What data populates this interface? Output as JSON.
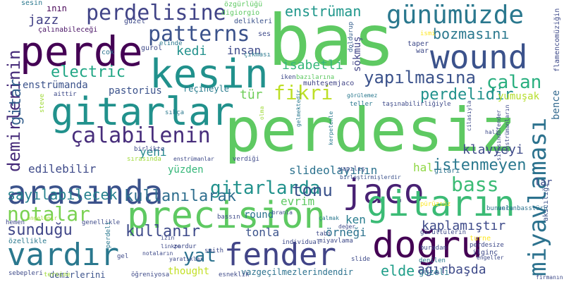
{
  "words": [
    {
      "text": "perdesiz",
      "color": "#5ec962"
    },
    {
      "text": "bas",
      "color": "#5ec962"
    },
    {
      "text": "perde",
      "color": "#440154"
    },
    {
      "text": "gitarlar",
      "color": "#21918c"
    },
    {
      "text": "kesin",
      "color": "#21918c"
    },
    {
      "text": "wound",
      "color": "#3b528b"
    },
    {
      "text": "arasında",
      "color": "#3b528b"
    },
    {
      "text": "precision",
      "color": "#5ec962"
    },
    {
      "text": "jaco",
      "color": "#482173"
    },
    {
      "text": "gitarın",
      "color": "#3bbb75"
    },
    {
      "text": "doğru",
      "color": "#440154"
    },
    {
      "text": "fender",
      "color": "#414487"
    },
    {
      "text": "vardır",
      "color": "#2a788e"
    },
    {
      "text": "günümüzde",
      "color": "#2a788e"
    },
    {
      "text": "miyavlaması",
      "color": "#2c728e"
    },
    {
      "text": "patterns",
      "color": "#3b528b"
    },
    {
      "text": "perdelisine",
      "color": "#414487"
    },
    {
      "text": "çalabilenin",
      "color": "#472d7b"
    },
    {
      "text": "electric",
      "color": "#21a685"
    },
    {
      "text": "fikri",
      "color": "#bddf26"
    },
    {
      "text": "yapılmasına",
      "color": "#3b528b"
    },
    {
      "text": "çalan",
      "color": "#29af7f"
    },
    {
      "text": "gitarlarda",
      "color": "#21918c"
    },
    {
      "text": "bass",
      "color": "#3bbb75"
    },
    {
      "text": "notalar",
      "color": "#7ad151"
    },
    {
      "text": "demirlerinin",
      "color": "#472c7a"
    },
    {
      "text": "enstrüman",
      "color": "#1f978b"
    },
    {
      "text": "bozmasını",
      "color": "#2a788e"
    },
    {
      "text": "yat",
      "color": "#2c728e"
    },
    {
      "text": "tonu",
      "color": "#3b528b"
    },
    {
      "text": "sunduğu",
      "color": "#404688"
    },
    {
      "text": "kullanır",
      "color": "#3e4a89"
    },
    {
      "text": "gitar",
      "color": "#355f8d"
    },
    {
      "text": "isabetli",
      "color": "#35b779"
    },
    {
      "text": "perdelidir",
      "color": "#21918c"
    },
    {
      "text": "kullanılarak",
      "color": "#2e6e8e"
    },
    {
      "text": "sayılabilecek",
      "color": "#26828e"
    },
    {
      "text": "istenmeyen",
      "color": "#2a788e"
    },
    {
      "text": "kaplamıştır",
      "color": "#3e4a89"
    },
    {
      "text": "ağırbaşda",
      "color": "#3e4a89"
    },
    {
      "text": "elde",
      "color": "#1f9e89"
    },
    {
      "text": "klavyeyi",
      "color": "#3e4a89"
    },
    {
      "text": "yumuşak",
      "color": "#b5de2b"
    },
    {
      "text": "bence",
      "color": "#31688e"
    },
    {
      "text": "slideolayının",
      "color": "#2c728e"
    },
    {
      "text": "kedi",
      "color": "#21918c"
    },
    {
      "text": "jazz",
      "color": "#424086"
    },
    {
      "text": "insan",
      "color": "#3e4a89"
    },
    {
      "text": "yeni",
      "color": "#24878e"
    },
    {
      "text": "edilebilir",
      "color": "#3e4a89"
    },
    {
      "text": "yüzden",
      "color": "#35b779"
    },
    {
      "text": "tonla",
      "color": "#3b528b"
    },
    {
      "text": "round",
      "color": "#2c728e"
    },
    {
      "text": "örneği",
      "color": "#2c728e"
    },
    {
      "text": "evrim",
      "color": "#5ec962"
    },
    {
      "text": "ken",
      "color": "#287c8e"
    },
    {
      "text": "hal",
      "color": "#8fd744"
    },
    {
      "text": "tür",
      "color": "#6ece58"
    },
    {
      "text": "thought",
      "color": "#c2df23"
    },
    {
      "text": "vazgeçilmezlerindendir",
      "color": "#2c728e"
    },
    {
      "text": "enstrümanda",
      "color": "#3b528b"
    },
    {
      "text": "pastorius",
      "color": "#3b528b"
    },
    {
      "text": "reçineyle",
      "color": "#287c8e"
    },
    {
      "text": "sökmüş",
      "color": "#414487"
    },
    {
      "text": "muhteşemjaco",
      "color": "#414487"
    },
    {
      "text": "çalınabileceği",
      "color": "#471063"
    },
    {
      "text": "lar",
      "color": "#3e4a89"
    },
    {
      "text": "ının",
      "color": "#440154"
    },
    {
      "text": "güzeli",
      "color": "#2a788e"
    },
    {
      "text": "demirlerini",
      "color": "#3b528b"
    },
    {
      "text": "flamencomüziğin",
      "color": "#3e4a89"
    },
    {
      "text": "akıcılığı",
      "color": "#3b528b"
    },
    {
      "text": "özgürlüğü",
      "color": "#5ec962"
    },
    {
      "text": "digiorgio",
      "color": "#5ec962"
    },
    {
      "text": "delikleri",
      "color": "#3b528b"
    },
    {
      "text": "güzel",
      "color": "#3e4a89"
    },
    {
      "text": "ses",
      "color": "#3e4a89"
    },
    {
      "text": "sesin",
      "color": "#2a788e"
    },
    {
      "text": "cok",
      "color": "#2c728e"
    },
    {
      "text": "gurol",
      "color": "#3e4a89"
    },
    {
      "text": "elinde",
      "color": "#2a788e"
    },
    {
      "text": "çıkması",
      "color": "#2a788e"
    },
    {
      "text": "doldurup",
      "color": "#355f8d"
    },
    {
      "text": "taper",
      "color": "#3e4a89"
    },
    {
      "text": "war",
      "color": "#3e4a89"
    },
    {
      "text": "ismi",
      "color": "#fde725"
    },
    {
      "text": "iken",
      "color": "#3e4a89"
    },
    {
      "text": "bazılarına",
      "color": "#5ec962"
    },
    {
      "text": "aittir",
      "color": "#3e4a89"
    },
    {
      "text": "steve",
      "color": "#a0da39"
    },
    {
      "text": "sıkça",
      "color": "#2a788e"
    },
    {
      "text": "birlikte",
      "color": "#3e4a89"
    },
    {
      "text": "sırasında",
      "color": "#a0da39"
    },
    {
      "text": "enstrümanlar",
      "color": "#3e4a89"
    },
    {
      "text": "verdiği",
      "color": "#3e4a89"
    },
    {
      "text": "gelmektedir",
      "color": "#2a788e"
    },
    {
      "text": "kerpetenle",
      "color": "#2a788e"
    },
    {
      "text": "görülemez",
      "color": "#2a788e"
    },
    {
      "text": "teller",
      "color": "#2a788e"
    },
    {
      "text": "taşınabilirliğiyle",
      "color": "#3e4a89"
    },
    {
      "text": "yapılış",
      "color": "#3e4a89"
    },
    {
      "text": "birleştirmişlerdir",
      "color": "#3b528b"
    },
    {
      "text": "gitarı",
      "color": "#2c728e"
    },
    {
      "text": "cilasıyla",
      "color": "#3e4a89"
    },
    {
      "text": "sırasındafender",
      "color": "#3e4a89"
    },
    {
      "text": "enstrümanların",
      "color": "#3e4a89"
    },
    {
      "text": "hali",
      "color": "#3e4a89"
    },
    {
      "text": "hemen",
      "color": "#3e4a89"
    },
    {
      "text": "genellikle",
      "color": "#3e4a89"
    },
    {
      "text": "öngelenir",
      "color": "#a0da39"
    },
    {
      "text": "perdeli",
      "color": "#2a788e"
    },
    {
      "text": "izin",
      "color": "#3e4a89"
    },
    {
      "text": "bassın",
      "color": "#3e4a89"
    },
    {
      "text": "oranla",
      "color": "#3e4a89"
    },
    {
      "text": "çalmak",
      "color": "#2a788e"
    },
    {
      "text": "değer",
      "color": "#3e4a89"
    },
    {
      "text": "pürüzsüz",
      "color": "#fde725"
    },
    {
      "text": "bununla",
      "color": "#2c728e"
    },
    {
      "text": "verenbasstürü",
      "color": "#2c728e"
    },
    {
      "text": "özellikle",
      "color": "#2a788e"
    },
    {
      "text": "gel",
      "color": "#3e4a89"
    },
    {
      "text": "zordur",
      "color": "#3e4a89"
    },
    {
      "text": "linkpa",
      "color": "#3e4a89"
    },
    {
      "text": "individual",
      "color": "#3e4a89"
    },
    {
      "text": "tabi",
      "color": "#3e4a89"
    },
    {
      "text": "miyavlama",
      "color": "#3e4a89"
    },
    {
      "text": "gürültülerin",
      "color": "#3e4a89"
    },
    {
      "text": "buradan",
      "color": "#3e4a89"
    },
    {
      "text": "turne",
      "color": "#fde725"
    },
    {
      "text": "perdesize",
      "color": "#3e4a89"
    },
    {
      "text": "ilginç",
      "color": "#3e4a89"
    },
    {
      "text": "notaların",
      "color": "#3e4a89"
    },
    {
      "text": "yaratıklar",
      "color": "#3e4a89"
    },
    {
      "text": "smith",
      "color": "#3e4a89"
    },
    {
      "text": "öğreniyosa",
      "color": "#3e4a89"
    },
    {
      "text": "esneklik",
      "color": "#3e4a89"
    },
    {
      "text": "slide",
      "color": "#3e4a89"
    },
    {
      "text": "denilen",
      "color": "#2a788e"
    },
    {
      "text": "engeller",
      "color": "#3e4a89"
    },
    {
      "text": "firmanın",
      "color": "#3e4a89"
    },
    {
      "text": "sebepleri",
      "color": "#3e4a89"
    },
    {
      "text": "tersine",
      "color": "#a0da39"
    },
    {
      "text": "olma",
      "color": "#a0da39"
    }
  ]
}
